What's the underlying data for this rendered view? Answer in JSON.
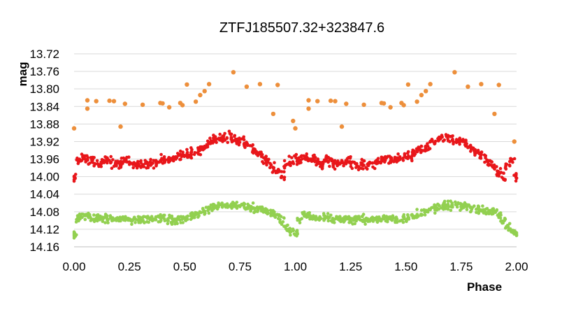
{
  "chart_data": {
    "type": "scatter",
    "title": "ZTFJ185507.32+323847.6",
    "xlabel": "Phase",
    "ylabel": "mag",
    "xlim": [
      0,
      2
    ],
    "ylim": [
      14.16,
      13.72
    ],
    "y_inverted": true,
    "grid": "horizontal",
    "legend": "none",
    "x_ticks": [
      "0.00",
      "0.25",
      "0.50",
      "0.75",
      "1.00",
      "1.25",
      "1.50",
      "1.75",
      "2.00"
    ],
    "y_ticks": [
      "13.72",
      "13.76",
      "13.80",
      "13.84",
      "13.88",
      "13.92",
      "13.96",
      "14.00",
      "14.04",
      "14.08",
      "14.12",
      "14.16"
    ],
    "series": [
      {
        "color": "#ED8F3B",
        "x": [
          0.0,
          0.06,
          0.06,
          0.1,
          0.16,
          0.18,
          0.21,
          0.23,
          0.31,
          0.39,
          0.4,
          0.43,
          0.48,
          0.49,
          0.51,
          0.55,
          0.57,
          0.59,
          0.61,
          0.72,
          0.78,
          0.84,
          0.9,
          0.92,
          0.99,
          1.0,
          1.06,
          1.06,
          1.1,
          1.16,
          1.18,
          1.21,
          1.23,
          1.31,
          1.39,
          1.4,
          1.43,
          1.48,
          1.49,
          1.51,
          1.55,
          1.57,
          1.59,
          1.61,
          1.72,
          1.78,
          1.84,
          1.9,
          1.92,
          1.99
        ],
        "y": [
          13.89,
          13.845,
          13.826,
          13.828,
          13.827,
          13.828,
          13.886,
          13.834,
          13.836,
          13.832,
          13.833,
          13.842,
          13.832,
          13.837,
          13.79,
          13.829,
          13.814,
          13.805,
          13.789,
          13.762,
          13.795,
          13.789,
          13.857,
          13.791,
          13.873,
          13.89,
          13.845,
          13.826,
          13.828,
          13.827,
          13.828,
          13.886,
          13.834,
          13.836,
          13.832,
          13.833,
          13.842,
          13.832,
          13.837,
          13.79,
          13.829,
          13.814,
          13.805,
          13.789,
          13.762,
          13.795,
          13.789,
          13.857,
          13.791,
          13.92
        ]
      },
      {
        "color": "#E8161A",
        "x": [
          0.0,
          0.02,
          0.04,
          0.06,
          0.08,
          0.1,
          0.12,
          0.14,
          0.16,
          0.18,
          0.2,
          0.22,
          0.24,
          0.26,
          0.28,
          0.3,
          0.32,
          0.34,
          0.36,
          0.38,
          0.4,
          0.42,
          0.44,
          0.46,
          0.48,
          0.5,
          0.52,
          0.54,
          0.56,
          0.58,
          0.6,
          0.62,
          0.64,
          0.66,
          0.68,
          0.7,
          0.72,
          0.74,
          0.76,
          0.78,
          0.8,
          0.82,
          0.84,
          0.86,
          0.88,
          0.9,
          0.92,
          0.94,
          0.96,
          0.98,
          1.0,
          1.02,
          1.04,
          1.06,
          1.08,
          1.1,
          1.12,
          1.14,
          1.16,
          1.18,
          1.2,
          1.22,
          1.24,
          1.26,
          1.28,
          1.3,
          1.32,
          1.34,
          1.36,
          1.38,
          1.4,
          1.42,
          1.44,
          1.46,
          1.48,
          1.5,
          1.52,
          1.54,
          1.56,
          1.58,
          1.6,
          1.62,
          1.64,
          1.66,
          1.68,
          1.7,
          1.72,
          1.74,
          1.76,
          1.78,
          1.8,
          1.82,
          1.84,
          1.86,
          1.88,
          1.9,
          1.92,
          1.94,
          1.96,
          1.98,
          2.0
        ],
        "y": [
          14.0,
          13.965,
          13.955,
          13.96,
          13.962,
          13.968,
          13.97,
          13.958,
          13.965,
          13.972,
          13.97,
          13.968,
          13.966,
          13.97,
          13.975,
          13.972,
          13.972,
          13.97,
          13.968,
          13.965,
          13.962,
          13.96,
          13.962,
          13.958,
          13.955,
          13.95,
          13.952,
          13.945,
          13.94,
          13.935,
          13.928,
          13.92,
          13.915,
          13.912,
          13.91,
          13.91,
          13.915,
          13.918,
          13.922,
          13.93,
          13.935,
          13.945,
          13.95,
          13.96,
          13.97,
          13.98,
          13.99,
          14.0,
          13.975,
          13.965,
          13.96,
          13.965,
          13.955,
          13.96,
          13.962,
          13.968,
          13.97,
          13.958,
          13.965,
          13.972,
          13.97,
          13.968,
          13.966,
          13.97,
          13.975,
          13.972,
          13.972,
          13.97,
          13.968,
          13.965,
          13.962,
          13.96,
          13.962,
          13.958,
          13.955,
          13.95,
          13.952,
          13.945,
          13.94,
          13.935,
          13.928,
          13.92,
          13.915,
          13.912,
          13.91,
          13.91,
          13.915,
          13.918,
          13.922,
          13.93,
          13.935,
          13.945,
          13.95,
          13.96,
          13.97,
          13.98,
          13.99,
          14.0,
          13.975,
          13.965,
          14.0
        ]
      },
      {
        "color": "#92D050",
        "x": [
          0.0,
          0.02,
          0.04,
          0.06,
          0.08,
          0.1,
          0.12,
          0.14,
          0.16,
          0.18,
          0.2,
          0.22,
          0.24,
          0.26,
          0.28,
          0.3,
          0.32,
          0.34,
          0.36,
          0.38,
          0.4,
          0.42,
          0.44,
          0.46,
          0.48,
          0.5,
          0.52,
          0.54,
          0.56,
          0.58,
          0.6,
          0.62,
          0.64,
          0.66,
          0.68,
          0.7,
          0.72,
          0.74,
          0.76,
          0.78,
          0.8,
          0.82,
          0.84,
          0.86,
          0.88,
          0.9,
          0.92,
          0.94,
          0.96,
          0.98,
          1.0,
          1.02,
          1.04,
          1.06,
          1.08,
          1.1,
          1.12,
          1.14,
          1.16,
          1.18,
          1.2,
          1.22,
          1.24,
          1.26,
          1.28,
          1.3,
          1.32,
          1.34,
          1.36,
          1.38,
          1.4,
          1.42,
          1.44,
          1.46,
          1.48,
          1.5,
          1.52,
          1.54,
          1.56,
          1.58,
          1.6,
          1.62,
          1.64,
          1.66,
          1.68,
          1.7,
          1.72,
          1.74,
          1.76,
          1.78,
          1.8,
          1.82,
          1.84,
          1.86,
          1.88,
          1.9,
          1.92,
          1.94,
          1.96,
          1.98,
          2.0
        ],
        "y": [
          14.13,
          14.095,
          14.088,
          14.09,
          14.094,
          14.096,
          14.095,
          14.093,
          14.095,
          14.098,
          14.097,
          14.096,
          14.096,
          14.097,
          14.098,
          14.098,
          14.098,
          14.097,
          14.098,
          14.097,
          14.096,
          14.097,
          14.098,
          14.099,
          14.097,
          14.095,
          14.093,
          14.09,
          14.085,
          14.08,
          14.075,
          14.072,
          14.07,
          14.068,
          14.066,
          14.066,
          14.066,
          14.066,
          14.068,
          14.068,
          14.07,
          14.072,
          14.075,
          14.077,
          14.08,
          14.083,
          14.088,
          14.1,
          14.115,
          14.125,
          14.13,
          14.095,
          14.088,
          14.09,
          14.094,
          14.096,
          14.095,
          14.093,
          14.095,
          14.098,
          14.097,
          14.096,
          14.096,
          14.097,
          14.098,
          14.098,
          14.098,
          14.097,
          14.098,
          14.097,
          14.096,
          14.097,
          14.098,
          14.099,
          14.097,
          14.095,
          14.093,
          14.09,
          14.085,
          14.08,
          14.075,
          14.072,
          14.07,
          14.068,
          14.066,
          14.066,
          14.066,
          14.066,
          14.068,
          14.068,
          14.07,
          14.072,
          14.075,
          14.077,
          14.08,
          14.083,
          14.088,
          14.1,
          14.115,
          14.125,
          14.13
        ]
      }
    ]
  }
}
